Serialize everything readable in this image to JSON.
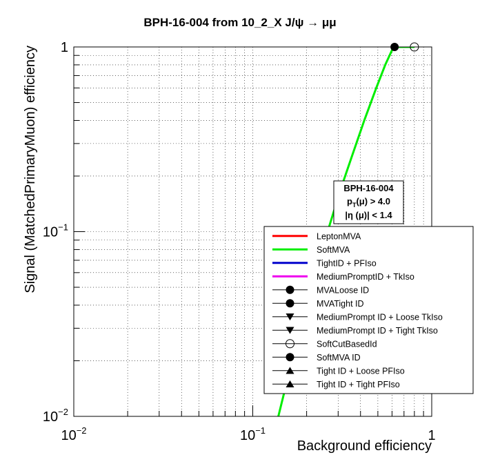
{
  "chart_data": {
    "type": "line",
    "title": "BPH-16-004 from 10_2_X J/ψ → μμ",
    "xlabel": "Background efficiency",
    "ylabel": "Signal (MatchedPrimaryMuon) efficiency",
    "x_scale": "log",
    "y_scale": "log",
    "xlim": [
      0.01,
      1
    ],
    "ylim": [
      0.01,
      1
    ],
    "grid": true,
    "x_ticks": [
      {
        "value": 0.01,
        "base": "10",
        "exp": "−2"
      },
      {
        "value": 0.1,
        "base": "10",
        "exp": "−1"
      },
      {
        "value": 1,
        "base": "1",
        "exp": ""
      }
    ],
    "y_ticks": [
      {
        "value": 0.01,
        "base": "10",
        "exp": "−2"
      },
      {
        "value": 0.1,
        "base": "10",
        "exp": "−1"
      },
      {
        "value": 1,
        "base": "1",
        "exp": ""
      }
    ],
    "series": [
      {
        "name": "SoftMVA",
        "color": "#00ee00",
        "x": [
          0.139,
          0.15,
          0.165,
          0.185,
          0.21,
          0.235,
          0.27,
          0.31,
          0.36,
          0.42,
          0.49,
          0.55,
          0.6,
          0.65,
          0.7,
          0.75,
          0.8
        ],
        "y": [
          0.01,
          0.0135,
          0.02,
          0.03,
          0.045,
          0.07,
          0.11,
          0.17,
          0.26,
          0.4,
          0.6,
          0.8,
          0.96,
          1.0,
          1.0,
          1.0,
          1.0
        ]
      }
    ],
    "markers": [
      {
        "name": "SoftMVA ID",
        "x": 0.62,
        "y": 1.0,
        "style": "filled-circle"
      },
      {
        "name": "SoftCutBasedId",
        "x": 0.8,
        "y": 1.0,
        "style": "open-circle"
      }
    ],
    "annotation": {
      "line1": "BPH-16-004",
      "line2_main": "p",
      "line2_sub": "T",
      "line2_rest": "(μ) > 4.0",
      "line3": "|η (μ)| < 1.4"
    },
    "legend": {
      "placement": "bottom-right",
      "entries": [
        {
          "label": "LeptonMVA",
          "kind": "line",
          "color": "#ff0000"
        },
        {
          "label": "SoftMVA",
          "kind": "line",
          "color": "#00ee00"
        },
        {
          "label": "TightID + PFIso",
          "kind": "line",
          "color": "#0000cc"
        },
        {
          "label": "MediumPromptID + TkIso",
          "kind": "line",
          "color": "#ee00ee"
        },
        {
          "label": "MVALoose ID",
          "kind": "marker",
          "marker": "filled-circle"
        },
        {
          "label": "MVATight ID",
          "kind": "marker",
          "marker": "filled-circle"
        },
        {
          "label": "MediumPrompt ID + Loose TkIso",
          "kind": "marker",
          "marker": "triangle-down"
        },
        {
          "label": "MediumPrompt ID + Tight TkIso",
          "kind": "marker",
          "marker": "triangle-down"
        },
        {
          "label": "SoftCutBasedId",
          "kind": "marker",
          "marker": "open-circle"
        },
        {
          "label": "SoftMVA ID",
          "kind": "marker",
          "marker": "filled-circle"
        },
        {
          "label": "Tight ID + Loose PFIso",
          "kind": "marker",
          "marker": "triangle-up"
        },
        {
          "label": "Tight ID + Tight PFIso",
          "kind": "marker",
          "marker": "triangle-up"
        }
      ]
    }
  }
}
